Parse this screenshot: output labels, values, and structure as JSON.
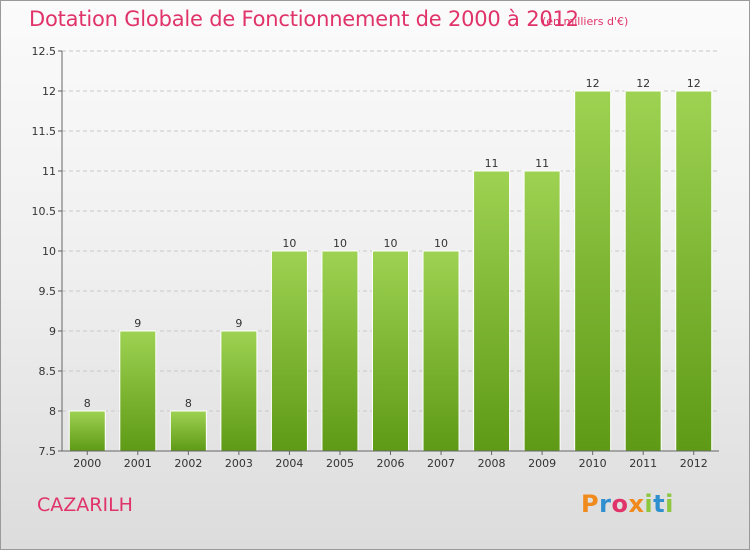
{
  "header": {
    "title": "Dotation Globale de Fonctionnement de 2000 à 2012",
    "unit": "(en milliers d'€)"
  },
  "footer": {
    "commune": "CAZARILH",
    "logo": "Proxiti"
  },
  "colors": {
    "accent": "#e0336a",
    "bar_top": "#9ed252",
    "bar_bottom": "#5e9a16",
    "logo_letters": [
      "#f08a1c",
      "#2f8fcf",
      "#e0336a",
      "#f08a1c",
      "#8dc63f",
      "#2f8fcf",
      "#8dc63f"
    ]
  },
  "chart_data": {
    "type": "bar",
    "categories": [
      "2000",
      "2001",
      "2002",
      "2003",
      "2004",
      "2005",
      "2006",
      "2007",
      "2008",
      "2009",
      "2010",
      "2011",
      "2012"
    ],
    "values": [
      8,
      9,
      8,
      9,
      10,
      10,
      10,
      10,
      11,
      11,
      12,
      12,
      12
    ],
    "data_labels": [
      "8",
      "9",
      "8",
      "9",
      "10",
      "10",
      "10",
      "10",
      "11",
      "11",
      "12",
      "12",
      "12"
    ],
    "yticks": [
      "7.5",
      "8",
      "8.5",
      "9",
      "9.5",
      "10",
      "10.5",
      "11",
      "11.5",
      "12",
      "12.5"
    ],
    "ylim": [
      7.5,
      12.5
    ],
    "title": "Dotation Globale de Fonctionnement de 2000 à 2012",
    "xlabel": "",
    "ylabel": "",
    "grid": true,
    "legend": "none"
  }
}
